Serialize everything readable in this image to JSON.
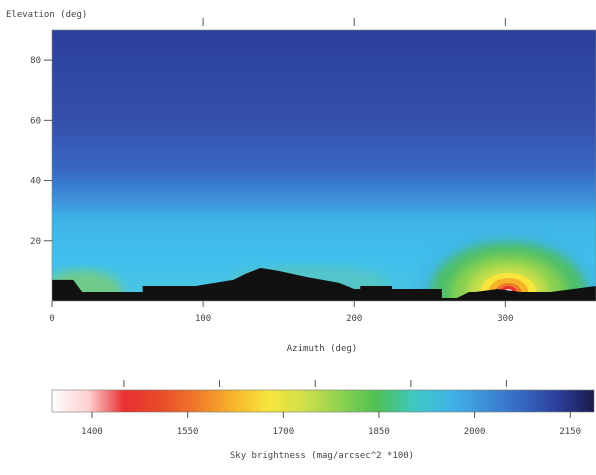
{
  "chart_data": [
    {
      "type": "heatmap",
      "title": "",
      "ylabel": "Elevation (deg)",
      "xlabel": "Azimuth (deg)",
      "xlim": [
        0,
        360
      ],
      "ylim": [
        0,
        90
      ],
      "x_ticks": [
        0,
        100,
        200,
        300
      ],
      "x_tick_labels": [
        "0",
        "100",
        "200",
        "300"
      ],
      "y_ticks": [
        20,
        40,
        60,
        80
      ],
      "y_tick_labels": [
        "20",
        "40",
        "60",
        "80"
      ],
      "top_ticks": [
        100,
        200,
        300
      ],
      "colormap": [
        "#ffffff",
        "#e83030",
        "#f07a2a",
        "#f6b32a",
        "#f7e53c",
        "#cfe04a",
        "#8cd24f",
        "#4fbf54",
        "#3ec9c2",
        "#3fb5e6",
        "#3d8fd8",
        "#3567c0",
        "#2c3f9c",
        "#1a1a4a"
      ],
      "terrain": [
        [
          0,
          7
        ],
        [
          14,
          7
        ],
        [
          20,
          3
        ],
        [
          60,
          3
        ],
        [
          60,
          5
        ],
        [
          95,
          5
        ],
        [
          120,
          7
        ],
        [
          128,
          9
        ],
        [
          138,
          11
        ],
        [
          150,
          10
        ],
        [
          168,
          8
        ],
        [
          190,
          6
        ],
        [
          200,
          4
        ],
        [
          204,
          4
        ],
        [
          204,
          5
        ],
        [
          225,
          5
        ],
        [
          225,
          4
        ],
        [
          258,
          4
        ],
        [
          258,
          1
        ],
        [
          268,
          1
        ],
        [
          276,
          3
        ],
        [
          280,
          3
        ],
        [
          295,
          4
        ],
        [
          310,
          3
        ],
        [
          330,
          3
        ],
        [
          360,
          5
        ]
      ],
      "sun": {
        "azimuth": 302,
        "elevation": 3
      },
      "series": []
    },
    {
      "type": "colorbar",
      "label": "Sky brightness (mag/arcsec^2 *100)",
      "range": [
        1400,
        2250
      ],
      "ticks": [
        1400,
        1550,
        1700,
        1850,
        2000,
        2150
      ],
      "tick_labels": [
        "1400",
        "1550",
        "1700",
        "1850",
        "2000",
        "2150"
      ],
      "top_ticks": [
        1450,
        1600,
        1750,
        1900,
        2050,
        2200
      ],
      "colors": [
        "#ffffff",
        "#ffd0d0",
        "#e83030",
        "#e84a2a",
        "#f07a2a",
        "#f6b32a",
        "#f7e53c",
        "#cfe04a",
        "#8cd24f",
        "#4fbf54",
        "#3ec9c2",
        "#3fb5e6",
        "#3d8fd8",
        "#3567c0",
        "#2c3f9c",
        "#1a1a4a"
      ]
    }
  ]
}
